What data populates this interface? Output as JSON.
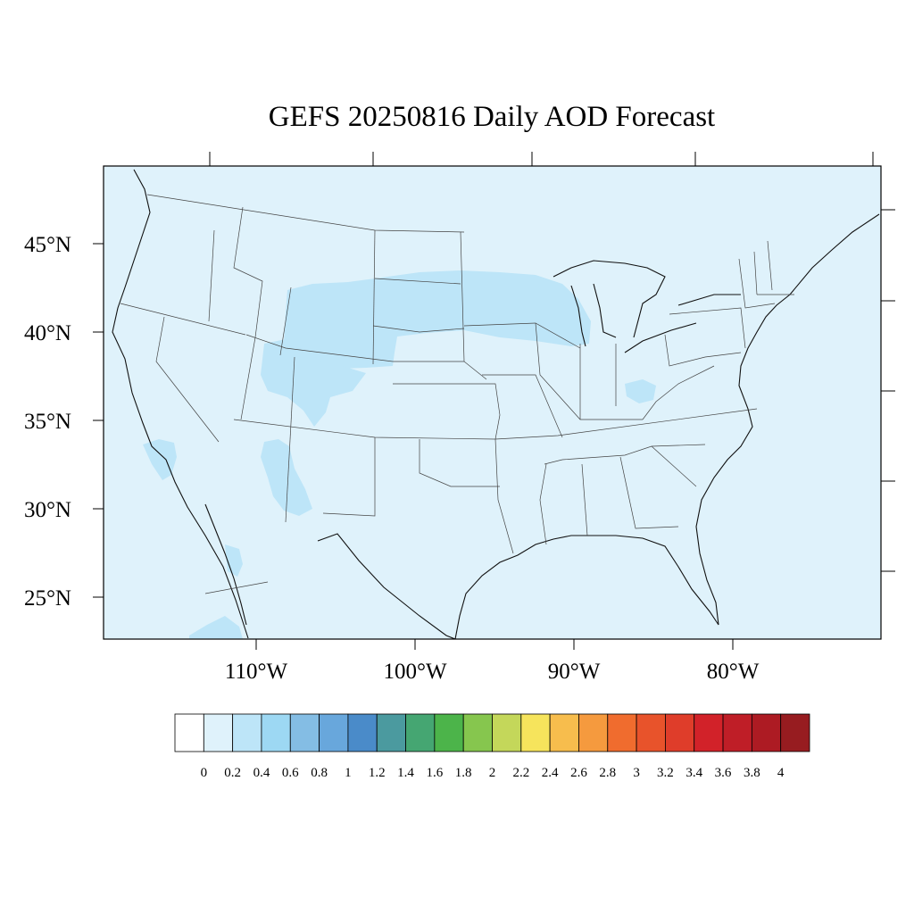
{
  "title": "GEFS 20250816 Daily AOD Forecast",
  "map": {
    "lon_range": [
      -119,
      -70
    ],
    "lat_range": [
      22.5,
      49.5
    ],
    "background_color": "#dff2fb",
    "lat_ticks": [
      {
        "value": 45,
        "label": "45°N"
      },
      {
        "value": 40,
        "label": "40°N"
      },
      {
        "value": 35,
        "label": "35°N"
      },
      {
        "value": 30,
        "label": "30°N"
      },
      {
        "value": 25,
        "label": "25°N"
      }
    ],
    "lon_ticks": [
      {
        "value": -110,
        "label": "110°W"
      },
      {
        "value": -100,
        "label": "100°W"
      },
      {
        "value": -90,
        "label": "90°W"
      },
      {
        "value": -80,
        "label": "80°W"
      }
    ]
  },
  "colorbar": {
    "levels": [
      "0",
      "0.2",
      "0.4",
      "0.6",
      "0.8",
      "1",
      "1.2",
      "1.4",
      "1.6",
      "1.8",
      "2",
      "2.2",
      "2.4",
      "2.6",
      "2.8",
      "3",
      "3.2",
      "3.4",
      "3.6",
      "3.8",
      "4"
    ],
    "colors": [
      "#ffffff",
      "#dff2fb",
      "#bde5f8",
      "#9dd8f3",
      "#84bde4",
      "#68a7dc",
      "#4a8bc9",
      "#4b9a9f",
      "#45a672",
      "#4cb44a",
      "#86c64e",
      "#c4d75a",
      "#f6e45c",
      "#f7bd4d",
      "#f59a3e",
      "#f06c2e",
      "#e8532b",
      "#df3d2a",
      "#d22229",
      "#bf1e27",
      "#ad1b23",
      "#971c20"
    ]
  }
}
